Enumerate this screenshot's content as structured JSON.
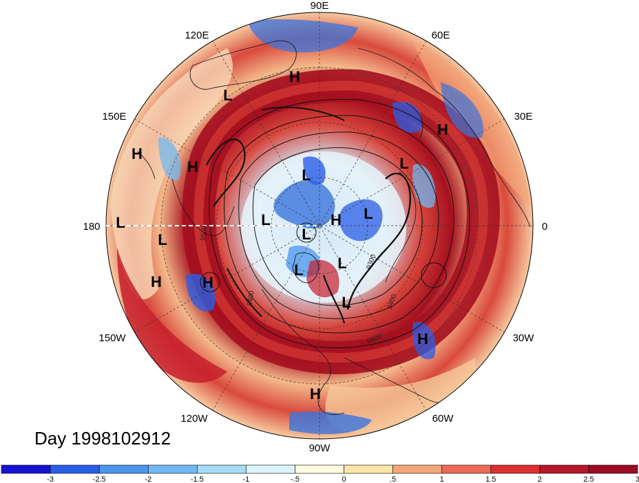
{
  "title": "Day 1998102912",
  "longitude_labels": [
    "90E",
    "60E",
    "30E",
    "0",
    "30W",
    "60W",
    "90W",
    "120W",
    "150W",
    "180",
    "150E",
    "120E"
  ],
  "pressure_centers": [
    {
      "label": "H"
    },
    {
      "label": "L"
    },
    {
      "label": "H"
    },
    {
      "label": "H"
    },
    {
      "label": "L"
    },
    {
      "label": "H"
    },
    {
      "label": "L"
    },
    {
      "label": "L"
    },
    {
      "label": "H"
    },
    {
      "label": "H"
    },
    {
      "label": "L"
    },
    {
      "label": "L"
    },
    {
      "label": "L"
    },
    {
      "label": "H"
    },
    {
      "label": "L"
    },
    {
      "label": "L"
    },
    {
      "label": "L"
    },
    {
      "label": "L"
    },
    {
      "label": "H"
    },
    {
      "label": "H"
    }
  ],
  "contour_labels": [
    "9300",
    "9400",
    "9400",
    "9500",
    "9600"
  ],
  "colorbar": {
    "colors": [
      "#1414d2",
      "#2b5ee6",
      "#4a95ee",
      "#72b8f2",
      "#a6dcf5",
      "#dcf3fb",
      "#fffbe0",
      "#fce5a6",
      "#f4a779",
      "#ec6b57",
      "#dc2f33",
      "#b6172a",
      "#9b0b22"
    ],
    "ticks": [
      "-3",
      "-2.5",
      "-2",
      "-1.5",
      "-1",
      "-.5",
      "0",
      ".5",
      "1",
      "1.5",
      "2",
      "2.5",
      "3"
    ]
  },
  "colors": {
    "map_ocean_dark_red": "#a3101f",
    "map_red": "#d63a34",
    "map_orange": "#f4a779",
    "map_pale": "#fbeed2",
    "map_light_blue": "#a6dcf5",
    "map_blue": "#3a75dd"
  }
}
